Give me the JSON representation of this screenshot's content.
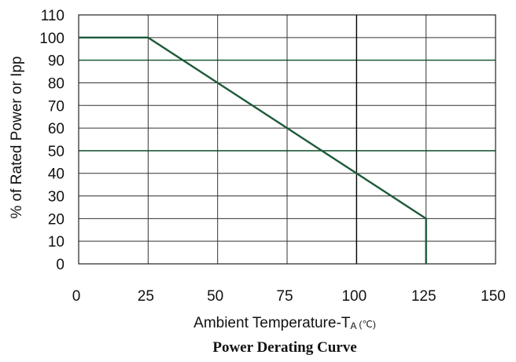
{
  "chart_data": {
    "type": "line",
    "title": "Power Derating Curve",
    "xlabel": {
      "main": "Ambient Temperature-T",
      "subscript": "A",
      "unit": "(℃)"
    },
    "ylabel": "% of Rated Power or Ipp",
    "xlim": [
      0,
      150
    ],
    "ylim": [
      0,
      110
    ],
    "x_ticks": [
      0,
      25,
      50,
      75,
      100,
      125,
      150
    ],
    "y_ticks": [
      0,
      10,
      20,
      30,
      40,
      50,
      60,
      70,
      80,
      90,
      100,
      110
    ],
    "grid": true,
    "series": [
      {
        "x": [
          0,
          25,
          125,
          125
        ],
        "y": [
          100,
          100,
          20,
          0
        ]
      }
    ],
    "colors": {
      "line": "#1e5a3a",
      "grid": "#333333",
      "grid_accent": "#1e5a3a"
    }
  }
}
